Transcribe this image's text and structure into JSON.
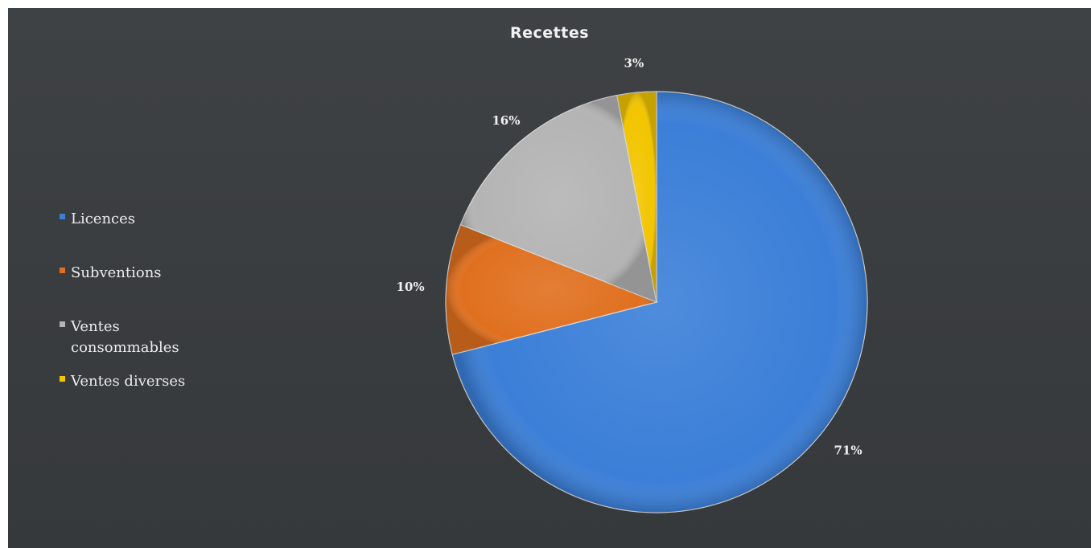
{
  "chart_data": {
    "type": "pie",
    "title": "Recettes",
    "categories": [
      "Licences",
      "Subventions",
      "Ventes consommables",
      "Ventes diverses"
    ],
    "values": [
      71,
      10,
      16,
      3
    ],
    "data_labels": [
      "71%",
      "10%",
      "16%",
      "3%"
    ],
    "colors": [
      "#3b7fd8",
      "#e0701f",
      "#b4b4b4",
      "#f2c500"
    ],
    "legend_position": "left",
    "background": "#3c3f42"
  }
}
